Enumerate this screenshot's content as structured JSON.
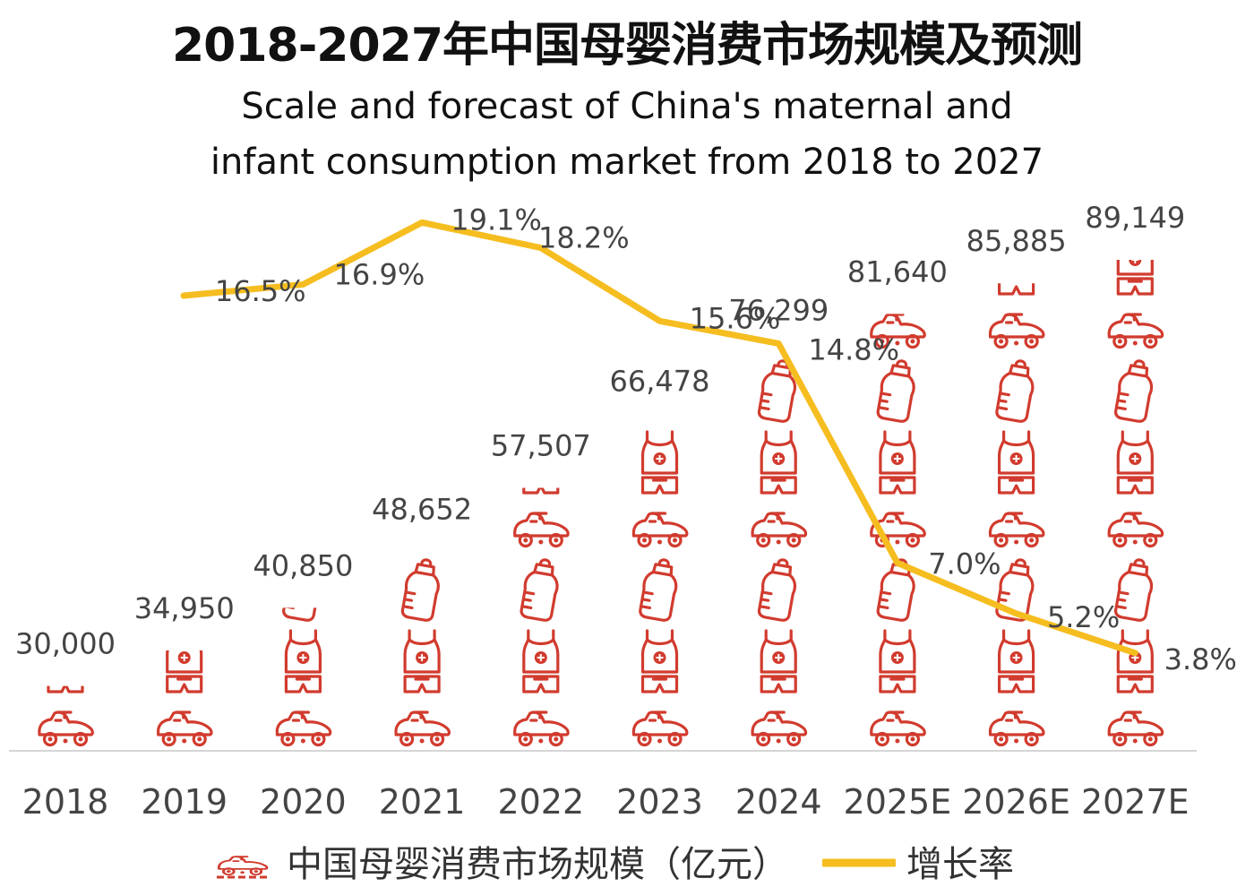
{
  "chart_data": {
    "type": "bar",
    "title": "2018-2027年中国母婴消费市场规模及预测",
    "subtitle_lines": [
      "Scale and forecast of China's maternal and",
      "infant consumption market from 2018 to 2027"
    ],
    "categories": [
      "2018",
      "2019",
      "2020",
      "2021",
      "2022",
      "2023",
      "2024",
      "2025E",
      "2026E",
      "2027E"
    ],
    "ylim": [
      0,
      90000
    ],
    "grid": false,
    "series": [
      {
        "name": "中国母婴消费市场规模（亿元）",
        "type": "pictorial-bar",
        "color": "#d13b2e",
        "values": [
          30000,
          34950,
          40850,
          48652,
          57507,
          66478,
          76299,
          81640,
          85885,
          89149
        ],
        "labels": [
          "30,000",
          "34,950",
          "40,850",
          "48,652",
          "57,507",
          "66,478",
          "76,299",
          "81,640",
          "85,885",
          "89,149"
        ]
      },
      {
        "name": "增长率",
        "type": "line",
        "color": "#f5bd1f",
        "values": [
          null,
          16.5,
          16.9,
          19.1,
          18.2,
          15.6,
          14.8,
          7.0,
          5.2,
          3.8
        ],
        "labels": [
          "",
          "16.5%",
          "16.9%",
          "19.1%",
          "18.2%",
          "15.6%",
          "14.8%",
          "7.0%",
          "5.2%",
          "3.8%"
        ]
      }
    ],
    "legend": {
      "position": "bottom"
    },
    "icons": [
      "toy-car-icon",
      "baby-vest-icon",
      "baby-bottle-icon"
    ]
  }
}
